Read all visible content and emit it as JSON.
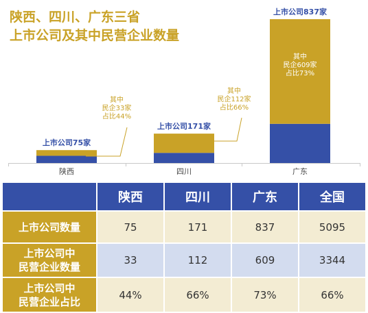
{
  "title": {
    "line1": "陕西、四川、广东三省",
    "line2": "上市公司及其中民营企业数量"
  },
  "colors": {
    "gold": "#c9a227",
    "blue": "#3550a7"
  },
  "chart_data": {
    "type": "bar",
    "stacked": true,
    "categories": [
      "陕西",
      "四川",
      "广东"
    ],
    "series": [
      {
        "values": [
          42,
          59,
          228
        ]
      },
      {
        "values": [
          33,
          112,
          609
        ]
      }
    ],
    "totals": [
      75,
      171,
      837
    ],
    "total_labels": [
      "上市公司75家",
      "上市公司171家",
      "上市公司837家"
    ],
    "annotations": [
      [
        "其中",
        "民企33家",
        "占比44%"
      ],
      [
        "其中",
        "民企112家",
        "占比66%"
      ],
      [
        "其中",
        "民企609家",
        "占比73%"
      ]
    ]
  },
  "table": {
    "columns": [
      "",
      "陕西",
      "四川",
      "广东",
      "全国"
    ],
    "rows": [
      {
        "label": [
          "上市公司数量"
        ],
        "values": [
          "75",
          "171",
          "837",
          "5095"
        ]
      },
      {
        "label": [
          "上市公司中",
          "民营企业数量"
        ],
        "values": [
          "33",
          "112",
          "609",
          "3344"
        ]
      },
      {
        "label": [
          "上市公司中",
          "民营企业占比"
        ],
        "values": [
          "44%",
          "66%",
          "73%",
          "66%"
        ]
      }
    ]
  }
}
